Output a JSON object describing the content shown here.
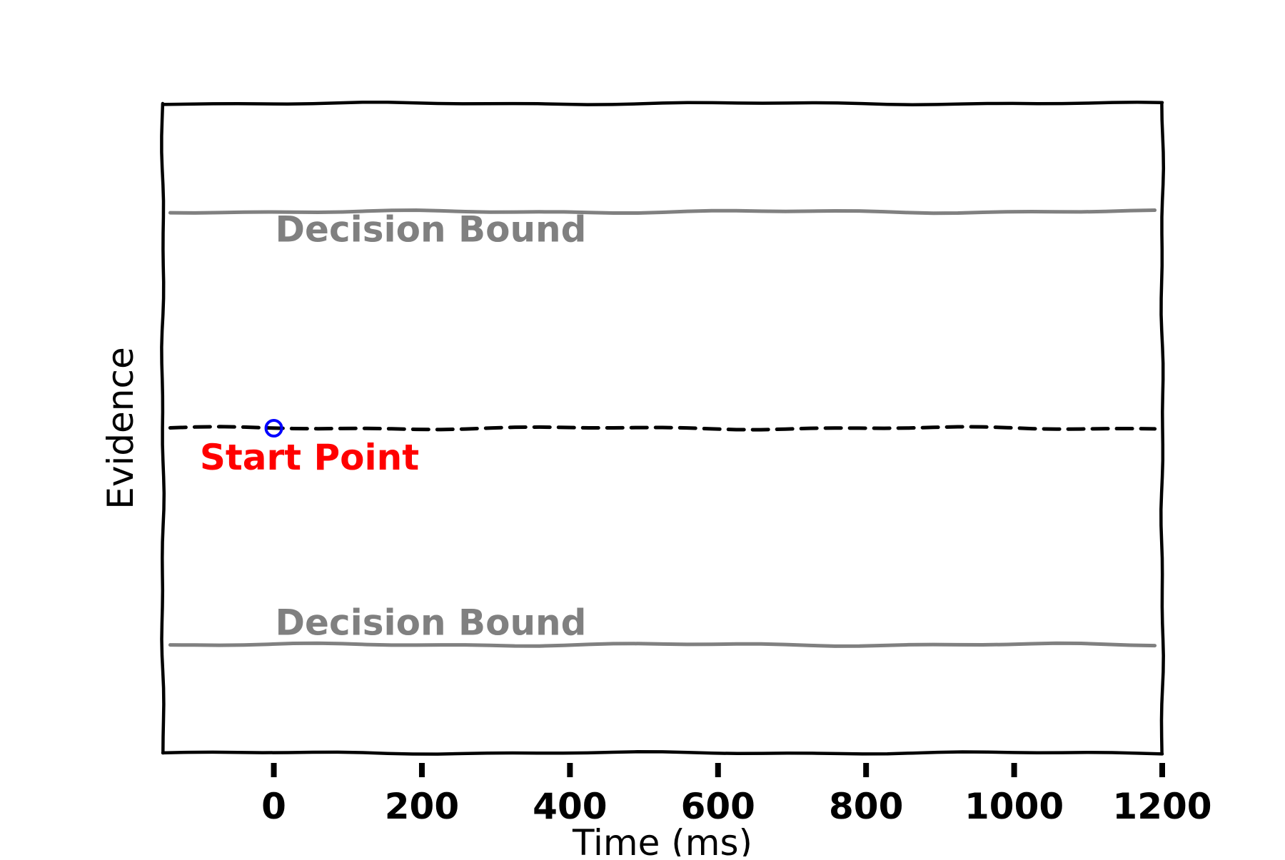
{
  "chart_data": {
    "type": "line",
    "title": "",
    "xlabel": "Time (ms)",
    "ylabel": "Evidence",
    "xlim": [
      -150,
      1200
    ],
    "ylim": [
      -1.5,
      1.5
    ],
    "xticks": [
      0,
      200,
      400,
      600,
      800,
      1000,
      1200
    ],
    "xtick_labels": [
      "0",
      "200",
      "400",
      "600",
      "800",
      "1000",
      "1200"
    ],
    "grid": false,
    "legend": "none",
    "series": [
      {
        "x": [
          -140,
          1190
        ],
        "y": [
          1.0,
          1.0
        ],
        "color": "#808080",
        "style": "solid"
      },
      {
        "x": [
          -140,
          1190
        ],
        "y": [
          -1.0,
          -1.0
        ],
        "color": "#808080",
        "style": "solid"
      },
      {
        "x": [
          -140,
          1190
        ],
        "y": [
          0.0,
          0.0
        ],
        "color": "#000000",
        "style": "dashed"
      }
    ],
    "points": [
      {
        "x": 0,
        "y": 0.0,
        "color": "#0000ff"
      }
    ],
    "annotations": [
      {
        "text": "Decision Bound",
        "x": 0,
        "y": 1.0,
        "color": "#808080"
      },
      {
        "text": "Decision Bound",
        "x": 0,
        "y": -1.0,
        "color": "#808080"
      },
      {
        "text": "Start Point",
        "x": -100,
        "y": 0.0,
        "color": "#ff0000"
      }
    ],
    "colors": {
      "bound": "#808080",
      "start_line": "#000000",
      "start_point": "#0000ff",
      "start_text": "#ff0000",
      "axes": "#000000"
    }
  }
}
